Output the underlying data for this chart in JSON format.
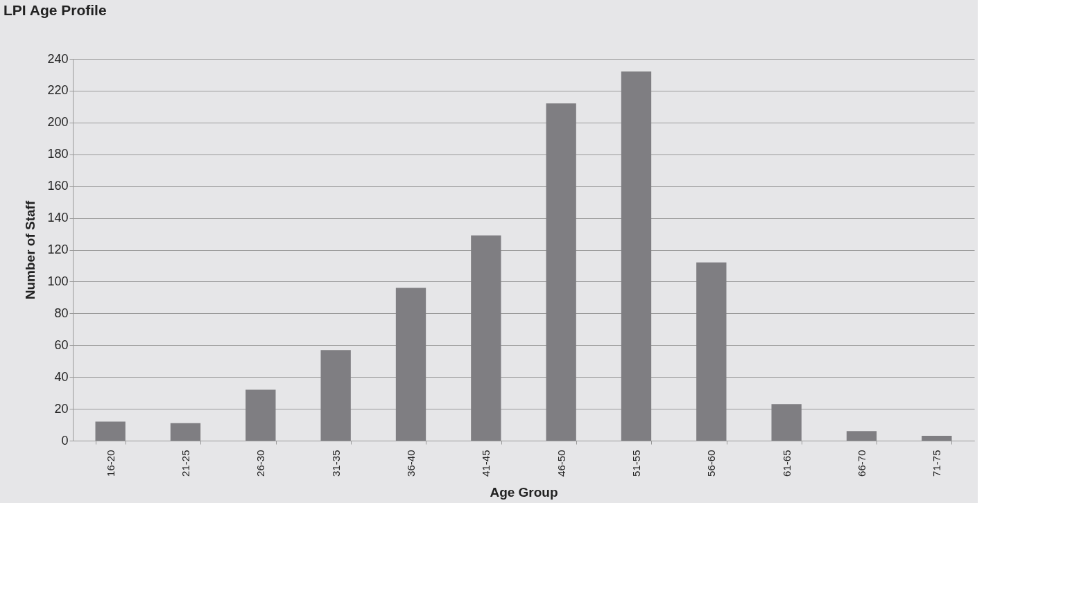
{
  "chart_data": {
    "type": "bar",
    "title": "LPI Age Profile",
    "xlabel": "Age Group",
    "ylabel": "Number of Staff",
    "categories": [
      "16-20",
      "21-25",
      "26-30",
      "31-35",
      "36-40",
      "41-45",
      "46-50",
      "51-55",
      "56-60",
      "61-65",
      "66-70",
      "71-75"
    ],
    "values": [
      12,
      11,
      32,
      57,
      96,
      129,
      212,
      232,
      112,
      23,
      6,
      3
    ],
    "color": "#7f7e82",
    "ylim": [
      0,
      240
    ],
    "yticks": [
      0,
      20,
      40,
      60,
      80,
      100,
      120,
      140,
      160,
      180,
      200,
      220,
      240
    ],
    "grid": "y",
    "legend": false
  }
}
